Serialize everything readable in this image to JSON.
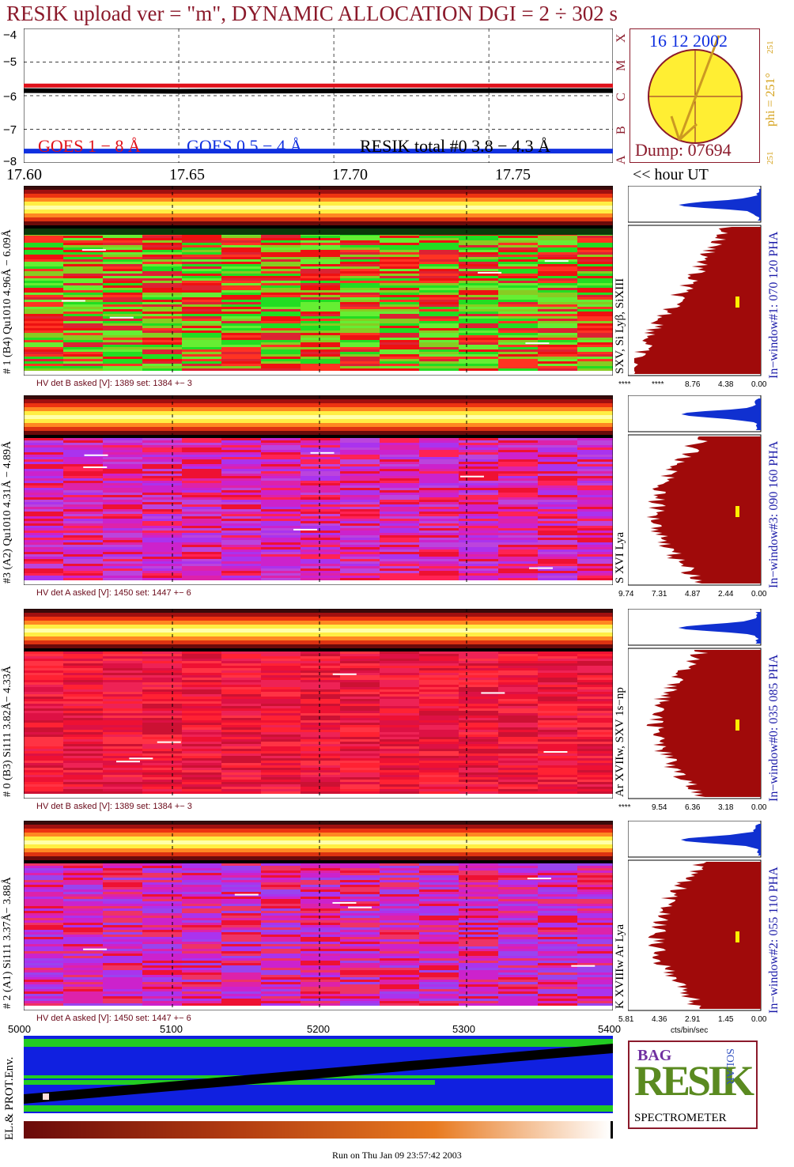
{
  "header": {
    "title": "RESIK upload ver = \"m\", DYNAMIC ALLOCATION  DGI =   2 ÷ 302 s"
  },
  "goes": {
    "yticks": [
      "−4",
      "−5",
      "−6",
      "−7",
      "−8"
    ],
    "legend_goes18": "GOES 1 − 8 Å",
    "legend_goes054": "GOES 0.5 − 4 Å",
    "legend_resik": "RESIK total #0  3.8 − 4.3 Å",
    "class_letters": [
      "X",
      "M",
      "C",
      "B",
      "A"
    ]
  },
  "sun": {
    "date": "16 12 2002",
    "dump": "Dump: 07694",
    "phi_label": "phi = 251°",
    "phi_small": "251",
    "phi_bottom": "251"
  },
  "time_axis": {
    "ticks": [
      "17.60",
      "17.65",
      "17.70",
      "17.75"
    ],
    "unit": "<< hour UT"
  },
  "channels": [
    {
      "left_label": "# 1 (B4) Qu1010 4.96Å − 6.09Å",
      "right_label": "SXV, Si Lyβ, SiXIII",
      "window": "In−window#1:  070 120 PHA",
      "hv": "HV det B asked [V]:  1389 set:  1384  +−   3",
      "pha_ticks": [
        "****",
        "****",
        "8.76",
        "4.38",
        "0.00"
      ]
    },
    {
      "left_label": "#3 (A2) Qu1010  4.31Å − 4.89Å",
      "right_label": "S XVI Lya",
      "window": "In−window#3:  090 160 PHA",
      "hv": "HV det A asked [V]:  1450 set:  1447  +−   6",
      "pha_ticks": [
        "9.74",
        "7.31",
        "4.87",
        "2.44",
        "0.00"
      ]
    },
    {
      "left_label": "# 0 (B3) Si111  3.82Å− 4.33Å",
      "right_label": "Ar XVIIw,  SXV 1s−np",
      "window": "In−window#0:  035 085 PHA",
      "hv": "HV det B asked [V]:  1389 set:  1384  +−   3",
      "pha_ticks": [
        "****",
        "9.54",
        "6.36",
        "3.18",
        "0.00"
      ]
    },
    {
      "left_label": "# 2 (A1) Si111  3.37Å− 3.88Å",
      "right_label": "K XVIIIw  Ar Lya",
      "window": "In−window#2:  055 110 PHA",
      "hv": "HV det A asked [V]:  1450 set:  1447  +−   6",
      "pha_ticks": [
        "5.81",
        "4.36",
        "2.91",
        "1.45",
        "0.00"
      ],
      "pha_unit": "cts/bin/sec"
    }
  ],
  "env": {
    "label": "EL.& PROT.Env.",
    "ticks": [
      "5000",
      "5100",
      "5200",
      "5300",
      "5400"
    ]
  },
  "logo": {
    "letters": "RESIK",
    "bag": "BAG",
    "solar": "SOLAR",
    "caption": "SPECTROMETER"
  },
  "footer": {
    "run": "Run on Thu Jan 09 23:57:42 2003"
  },
  "colors": {
    "title": "#8b1a2b",
    "goes18": "#e0101a",
    "goes054": "#1030e0",
    "resik": "#000000",
    "pha_fill": "#a00a0a",
    "pha_blue": "#1030d0",
    "sun": "#ffee33"
  },
  "chart_data": [
    {
      "type": "line",
      "title": "",
      "xlabel": "",
      "ylabel": "",
      "xlim": [
        17.6,
        17.79
      ],
      "ylim": [
        -8,
        -4
      ],
      "series": [
        {
          "name": "GOES 1 − 8 Å",
          "x": [
            17.6,
            17.79
          ],
          "y": [
            -5.7,
            -5.7
          ]
        },
        {
          "name": "GOES 0.5 − 4 Å",
          "x": [
            17.6,
            17.79
          ],
          "y": [
            -7.65,
            -7.65
          ]
        },
        {
          "name": "RESIK total #0  3.8 − 4.3 Å",
          "x": [
            17.6,
            17.65,
            17.7,
            17.75,
            17.79
          ],
          "y": [
            -5.85,
            -5.87,
            -5.86,
            -5.85,
            -5.85
          ]
        }
      ]
    }
  ]
}
